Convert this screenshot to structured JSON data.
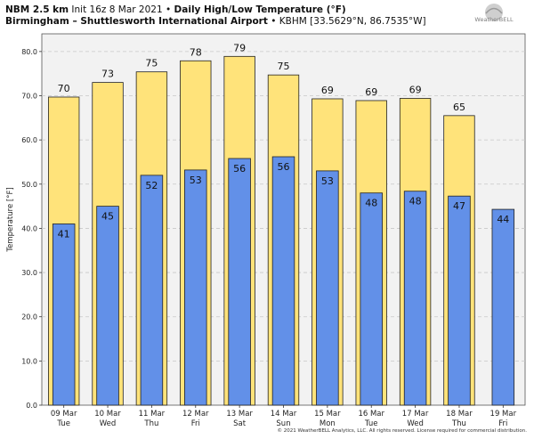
{
  "header": {
    "line1_model": "NBM 2.5 km",
    "line1_init": "Init 16z 8 Mar 2021",
    "line1_sep": "•",
    "line1_title": "Daily High/Low Temperature (°F)",
    "line2_station": "Birmingham – Shuttlesworth International Airport",
    "line2_sep": "•",
    "line2_coords": "KBHM [33.5629°N, 86.7535°W]"
  },
  "logo": {
    "text": "WeatherBELL",
    "icon": "weatherbell-logo-icon"
  },
  "footer": {
    "copyright": "© 2021 WeatherBELL Analytics, LLC. All rights reserved. License required for commercial distribution."
  },
  "colors": {
    "high": "#ffe37a",
    "low": "#6290e8",
    "plot_bg": "#f2f2f2",
    "grid": "#c8c8c8"
  },
  "chart_data": {
    "type": "bar",
    "title": "Daily High/Low Temperature (°F)",
    "xlabel": "",
    "ylabel": "Temperature [°F]",
    "ylim": [
      0,
      84
    ],
    "yticks": [
      "0.0",
      "10.0",
      "20.0",
      "30.0",
      "40.0",
      "50.0",
      "60.0",
      "70.0",
      "80.0"
    ],
    "ytick_values": [
      0,
      10,
      20,
      30,
      40,
      50,
      60,
      70,
      80
    ],
    "grid": true,
    "categories": [
      [
        "09 Mar",
        "Tue"
      ],
      [
        "10 Mar",
        "Wed"
      ],
      [
        "11 Mar",
        "Thu"
      ],
      [
        "12 Mar",
        "Fri"
      ],
      [
        "13 Mar",
        "Sat"
      ],
      [
        "14 Mar",
        "Sun"
      ],
      [
        "15 Mar",
        "Mon"
      ],
      [
        "16 Mar",
        "Tue"
      ],
      [
        "17 Mar",
        "Wed"
      ],
      [
        "18 Mar",
        "Thu"
      ],
      [
        "19 Mar",
        "Fri"
      ]
    ],
    "series": [
      {
        "key": "high",
        "values": [
          69.7,
          73.0,
          75.4,
          77.9,
          78.9,
          74.7,
          69.3,
          68.9,
          69.4,
          65.5,
          null
        ],
        "labels": [
          "70",
          "73",
          "75",
          "78",
          "79",
          "75",
          "69",
          "69",
          "69",
          "65",
          ""
        ]
      },
      {
        "key": "low",
        "values": [
          41.0,
          45.0,
          52.0,
          53.2,
          55.8,
          56.2,
          53.0,
          48.0,
          48.4,
          47.3,
          44.3
        ],
        "labels": [
          "41",
          "45",
          "52",
          "53",
          "56",
          "56",
          "53",
          "48",
          "48",
          "47",
          "44"
        ]
      }
    ]
  }
}
